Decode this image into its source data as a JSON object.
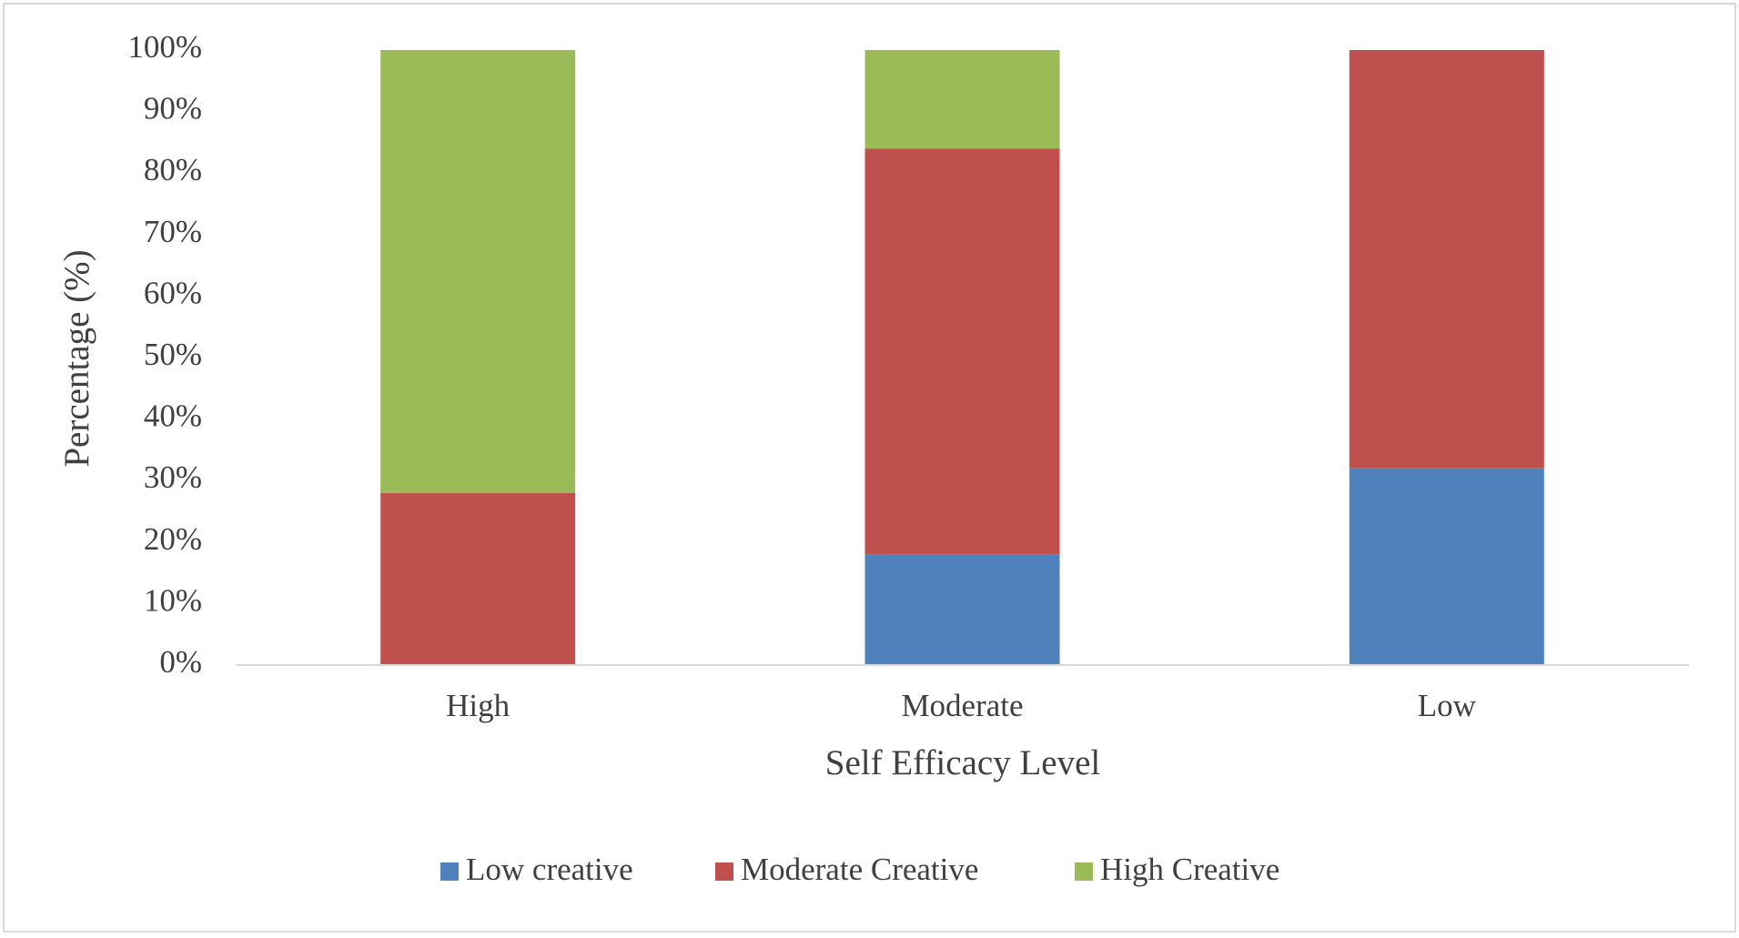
{
  "chart_data": {
    "type": "stacked_bar",
    "x_label": "Self Efficacy Level",
    "y_label": "Percentage (%)",
    "categories": [
      "High",
      "Moderate",
      "Low"
    ],
    "series": [
      {
        "name": "Low creative",
        "color": "#4f81bd",
        "values": [
          0,
          18,
          32
        ]
      },
      {
        "name": "Moderate Creative",
        "color": "#c0504d",
        "values": [
          28,
          66,
          68
        ]
      },
      {
        "name": "High Creative",
        "color": "#9bbb59",
        "values": [
          72,
          16,
          0
        ]
      }
    ],
    "ylim": [
      0,
      100
    ],
    "yticks": [
      {
        "value": 0,
        "label": "0%"
      },
      {
        "value": 10,
        "label": "10%"
      },
      {
        "value": 20,
        "label": "20%"
      },
      {
        "value": 30,
        "label": "30%"
      },
      {
        "value": 40,
        "label": "40%"
      },
      {
        "value": 50,
        "label": "50%"
      },
      {
        "value": 60,
        "label": "60%"
      },
      {
        "value": 70,
        "label": "70%"
      },
      {
        "value": 80,
        "label": "80%"
      },
      {
        "value": 90,
        "label": "90%"
      },
      {
        "value": 100,
        "label": "100%"
      }
    ],
    "grid": false,
    "legend": "bottom"
  }
}
